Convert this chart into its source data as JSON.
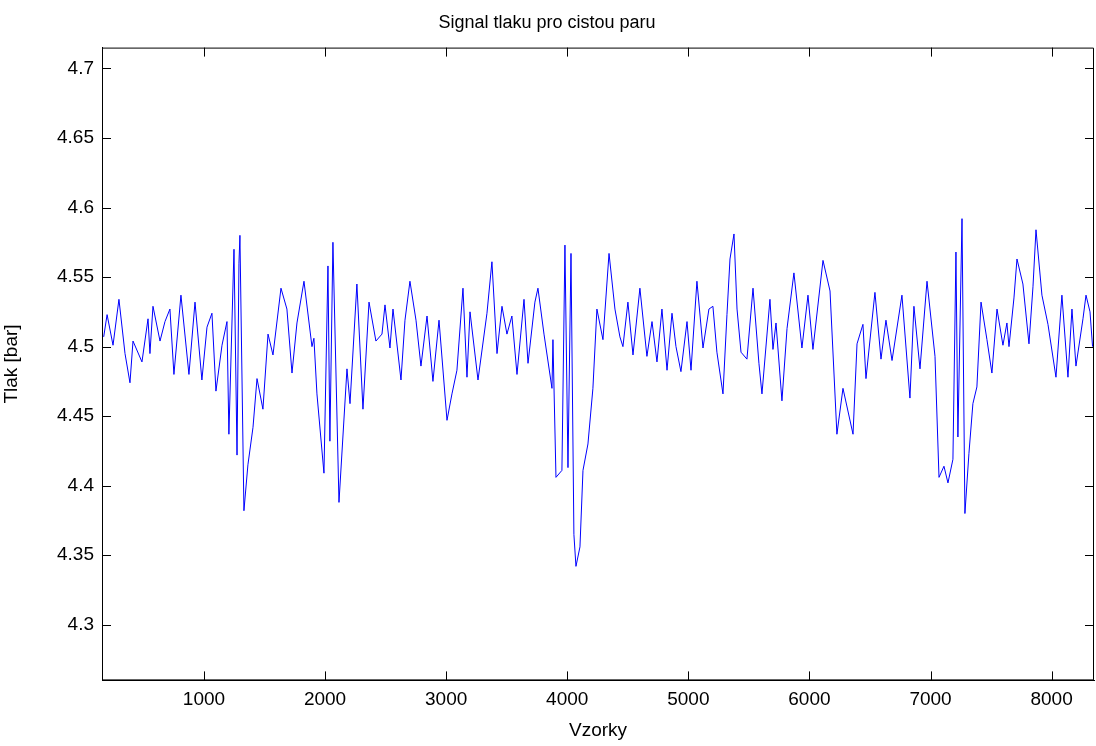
{
  "chart_data": {
    "type": "line",
    "title": "Signal tlaku pro cistou paru",
    "xlabel": "Vzorky",
    "ylabel": "Tlak [bar]",
    "xlim": [
      158,
      8350
    ],
    "ylim": [
      4.26,
      4.715
    ],
    "xticks": [
      1000,
      2000,
      3000,
      4000,
      5000,
      6000,
      7000,
      8000
    ],
    "yticks": [
      4.3,
      4.35,
      4.4,
      4.45,
      4.5,
      4.55,
      4.6,
      4.65,
      4.7
    ],
    "marker": "none",
    "line_style": "solid",
    "legend": false,
    "series": [
      {
        "color": "#0000ff",
        "x": [
          172,
          200,
          249,
          298,
          348,
          389,
          414,
          488,
          538,
          554,
          579,
          637,
          678,
          719,
          752,
          810,
          876,
          926,
          983,
          1025,
          1066,
          1099,
          1149,
          1190,
          1206,
          1248,
          1273,
          1289,
          1297,
          1330,
          1363,
          1405,
          1438,
          1487,
          1529,
          1570,
          1636,
          1685,
          1727,
          1768,
          1826,
          1892,
          1908,
          1933,
          1991,
          2024,
          2040,
          2065,
          2115,
          2181,
          2206,
          2263,
          2313,
          2363,
          2420,
          2470,
          2495,
          2536,
          2561,
          2627,
          2660,
          2701,
          2751,
          2792,
          2842,
          2891,
          2941,
          3007,
          3048,
          3089,
          3139,
          3172,
          3197,
          3263,
          3337,
          3378,
          3420,
          3461,
          3502,
          3543,
          3585,
          3643,
          3676,
          3733,
          3758,
          3808,
          3874,
          3882,
          3907,
          3956,
          3981,
          4006,
          4031,
          4055,
          4072,
          4105,
          4130,
          4171,
          4212,
          4245,
          4295,
          4345,
          4394,
          4435,
          4460,
          4501,
          4543,
          4600,
          4658,
          4700,
          4741,
          4782,
          4824,
          4865,
          4898,
          4939,
          4989,
          5022,
          5071,
          5121,
          5170,
          5203,
          5236,
          5286,
          5319,
          5344,
          5377,
          5402,
          5435,
          5484,
          5534,
          5583,
          5608,
          5674,
          5699,
          5724,
          5773,
          5815,
          5872,
          5938,
          5988,
          6029,
          6112,
          6170,
          6227,
          6277,
          6360,
          6393,
          6442,
          6467,
          6541,
          6591,
          6632,
          6682,
          6764,
          6830,
          6863,
          6913,
          6971,
          7037,
          7070,
          7111,
          7144,
          7185,
          7210,
          7226,
          7260,
          7284,
          7317,
          7350,
          7383,
          7417,
          7466,
          7507,
          7549,
          7598,
          7631,
          7648,
          7689,
          7714,
          7763,
          7813,
          7846,
          7871,
          7920,
          7970,
          8036,
          8085,
          8135,
          8168,
          8201,
          8259,
          8284,
          8317,
          8338
        ],
        "values": [
          4.507,
          4.523,
          4.501,
          4.534,
          4.495,
          4.474,
          4.504,
          4.489,
          4.52,
          4.495,
          4.529,
          4.504,
          4.518,
          4.527,
          4.48,
          4.537,
          4.48,
          4.532,
          4.476,
          4.514,
          4.524,
          4.468,
          4.501,
          4.518,
          4.437,
          4.57,
          4.422,
          4.56,
          4.58,
          4.382,
          4.415,
          4.442,
          4.477,
          4.455,
          4.509,
          4.494,
          4.542,
          4.527,
          4.481,
          4.517,
          4.547,
          4.5,
          4.506,
          4.466,
          4.409,
          4.558,
          4.432,
          4.575,
          4.388,
          4.484,
          4.459,
          4.545,
          4.455,
          4.532,
          4.504,
          4.509,
          4.53,
          4.499,
          4.527,
          4.476,
          4.519,
          4.547,
          4.519,
          4.486,
          4.522,
          4.475,
          4.519,
          4.447,
          4.466,
          4.483,
          4.542,
          4.478,
          4.525,
          4.476,
          4.524,
          4.561,
          4.495,
          4.529,
          4.509,
          4.522,
          4.48,
          4.534,
          4.488,
          4.532,
          4.542,
          4.509,
          4.47,
          4.505,
          4.406,
          4.411,
          4.573,
          4.413,
          4.567,
          4.365,
          4.342,
          4.356,
          4.411,
          4.43,
          4.47,
          4.527,
          4.505,
          4.567,
          4.527,
          4.507,
          4.5,
          4.532,
          4.494,
          4.542,
          4.493,
          4.518,
          4.489,
          4.527,
          4.483,
          4.524,
          4.5,
          4.482,
          4.518,
          4.483,
          4.547,
          4.499,
          4.527,
          4.529,
          4.496,
          4.466,
          4.523,
          4.563,
          4.581,
          4.527,
          4.496,
          4.491,
          4.542,
          4.488,
          4.466,
          4.534,
          4.498,
          4.517,
          4.461,
          4.513,
          4.553,
          4.499,
          4.537,
          4.498,
          4.562,
          4.54,
          4.437,
          4.47,
          4.437,
          4.502,
          4.516,
          4.477,
          4.539,
          4.491,
          4.519,
          4.49,
          4.537,
          4.463,
          4.529,
          4.484,
          4.547,
          4.493,
          4.406,
          4.414,
          4.402,
          4.419,
          4.568,
          4.435,
          4.592,
          4.38,
          4.423,
          4.459,
          4.471,
          4.532,
          4.505,
          4.481,
          4.527,
          4.501,
          4.517,
          4.5,
          4.535,
          4.563,
          4.545,
          4.502,
          4.543,
          4.584,
          4.537,
          4.516,
          4.478,
          4.537,
          4.478,
          4.527,
          4.486,
          4.52,
          4.537,
          4.525,
          4.5
        ]
      }
    ]
  }
}
